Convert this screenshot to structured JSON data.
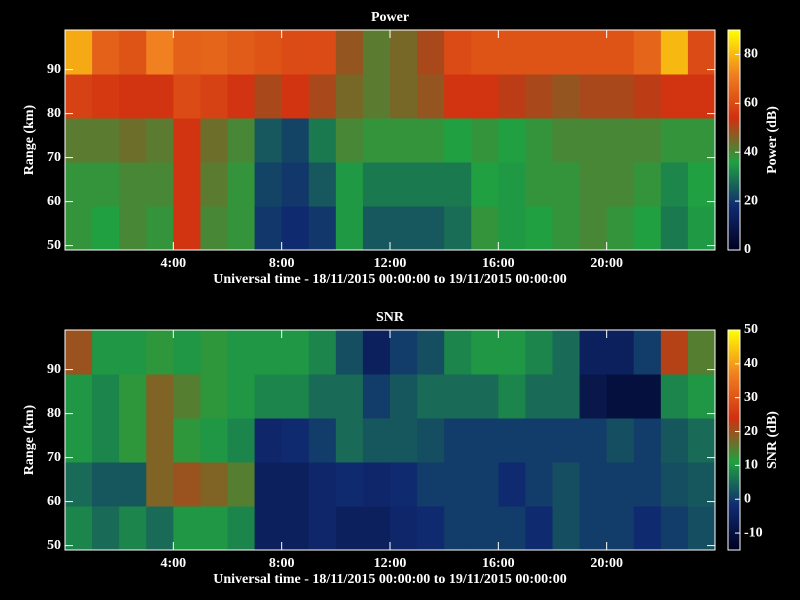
{
  "chart_data": [
    {
      "type": "heatmap",
      "title": "Power",
      "xlabel": "Universal time - 18/11/2015 00:00:00 to 19/11/2015 00:00:00",
      "ylabel": "Range (km)",
      "colorbar_label": "Power (dB)",
      "x": [
        0.5,
        1.5,
        2.5,
        3.5,
        4.5,
        5.5,
        6.5,
        7.5,
        8.5,
        9.5,
        10.5,
        11.5,
        12.5,
        13.5,
        14.5,
        15.5,
        16.5,
        17.5,
        18.5,
        19.5,
        20.5,
        21.5,
        22.5,
        23.5
      ],
      "y": [
        54,
        64,
        74,
        84,
        94
      ],
      "values": [
        [
          38,
          36,
          40,
          38,
          55,
          40,
          38,
          20,
          18,
          20,
          35,
          25,
          25,
          25,
          28,
          38,
          35,
          36,
          38,
          40,
          38,
          36,
          30,
          35
        ],
        [
          38,
          38,
          40,
          40,
          55,
          42,
          38,
          22,
          20,
          25,
          35,
          30,
          30,
          30,
          30,
          36,
          35,
          38,
          38,
          40,
          40,
          38,
          32,
          36
        ],
        [
          42,
          42,
          44,
          42,
          55,
          44,
          40,
          25,
          22,
          30,
          40,
          38,
          38,
          38,
          36,
          38,
          36,
          38,
          40,
          40,
          40,
          40,
          38,
          38
        ],
        [
          58,
          56,
          55,
          55,
          60,
          58,
          55,
          50,
          55,
          50,
          45,
          42,
          45,
          48,
          55,
          55,
          52,
          50,
          48,
          50,
          50,
          52,
          55,
          55
        ],
        [
          78,
          65,
          62,
          72,
          65,
          66,
          64,
          62,
          60,
          60,
          48,
          42,
          45,
          50,
          60,
          62,
          62,
          62,
          62,
          62,
          62,
          66,
          80,
          60
        ]
      ],
      "xlim": [
        0,
        24
      ],
      "xticks": [
        {
          "value": 4,
          "label": "4:00"
        },
        {
          "value": 8,
          "label": "8:00"
        },
        {
          "value": 12,
          "label": "12:00"
        },
        {
          "value": 16,
          "label": "16:00"
        },
        {
          "value": 20,
          "label": "20:00"
        }
      ],
      "ylim": [
        49,
        99
      ],
      "yticks": [
        50,
        60,
        70,
        80,
        90
      ],
      "zlim": [
        0,
        90
      ],
      "zticks": [
        0,
        20,
        40,
        60,
        80
      ],
      "colormap": [
        "#000020",
        "#102a70",
        "#20a040",
        "#d03010",
        "#f08020",
        "#ffff00"
      ]
    },
    {
      "type": "heatmap",
      "title": "SNR",
      "xlabel": "Universal time - 18/11/2015 00:00:00 to 19/11/2015 00:00:00",
      "ylabel": "Range (km)",
      "colorbar_label": "SNR (dB)",
      "x": [
        0.5,
        1.5,
        2.5,
        3.5,
        4.5,
        5.5,
        6.5,
        7.5,
        8.5,
        9.5,
        10.5,
        11.5,
        12.5,
        13.5,
        14.5,
        15.5,
        16.5,
        17.5,
        18.5,
        19.5,
        20.5,
        21.5,
        22.5,
        23.5
      ],
      "y": [
        54,
        64,
        74,
        84,
        94
      ],
      "values": [
        [
          8,
          5,
          8,
          5,
          10,
          10,
          8,
          -5,
          -5,
          -3,
          -5,
          -5,
          -3,
          -2,
          0,
          0,
          0,
          -2,
          2,
          0,
          0,
          -2,
          0,
          2
        ],
        [
          5,
          3,
          3,
          18,
          20,
          18,
          15,
          -5,
          -5,
          -3,
          -2,
          -3,
          -2,
          0,
          0,
          0,
          -2,
          0,
          2,
          0,
          0,
          0,
          2,
          3
        ],
        [
          10,
          8,
          12,
          18,
          12,
          10,
          8,
          -3,
          -2,
          0,
          5,
          3,
          3,
          2,
          0,
          0,
          0,
          0,
          0,
          0,
          2,
          0,
          3,
          5
        ],
        [
          10,
          8,
          12,
          18,
          15,
          12,
          10,
          8,
          8,
          5,
          5,
          0,
          3,
          5,
          5,
          5,
          8,
          5,
          5,
          -8,
          -10,
          -10,
          8,
          10
        ],
        [
          20,
          10,
          10,
          12,
          10,
          12,
          10,
          10,
          10,
          8,
          2,
          -5,
          0,
          2,
          8,
          10,
          10,
          8,
          5,
          -5,
          -5,
          0,
          22,
          15
        ]
      ],
      "xlim": [
        0,
        24
      ],
      "xticks": [
        {
          "value": 4,
          "label": "4:00"
        },
        {
          "value": 8,
          "label": "8:00"
        },
        {
          "value": 12,
          "label": "12:00"
        },
        {
          "value": 16,
          "label": "16:00"
        },
        {
          "value": 20,
          "label": "20:00"
        }
      ],
      "ylim": [
        49,
        99
      ],
      "yticks": [
        50,
        60,
        70,
        80,
        90
      ],
      "zlim": [
        -15,
        50
      ],
      "zticks": [
        -10,
        0,
        10,
        20,
        30,
        40,
        50
      ],
      "colormap": [
        "#000020",
        "#102a70",
        "#20a040",
        "#d03010",
        "#f08020",
        "#ffff00"
      ]
    }
  ]
}
